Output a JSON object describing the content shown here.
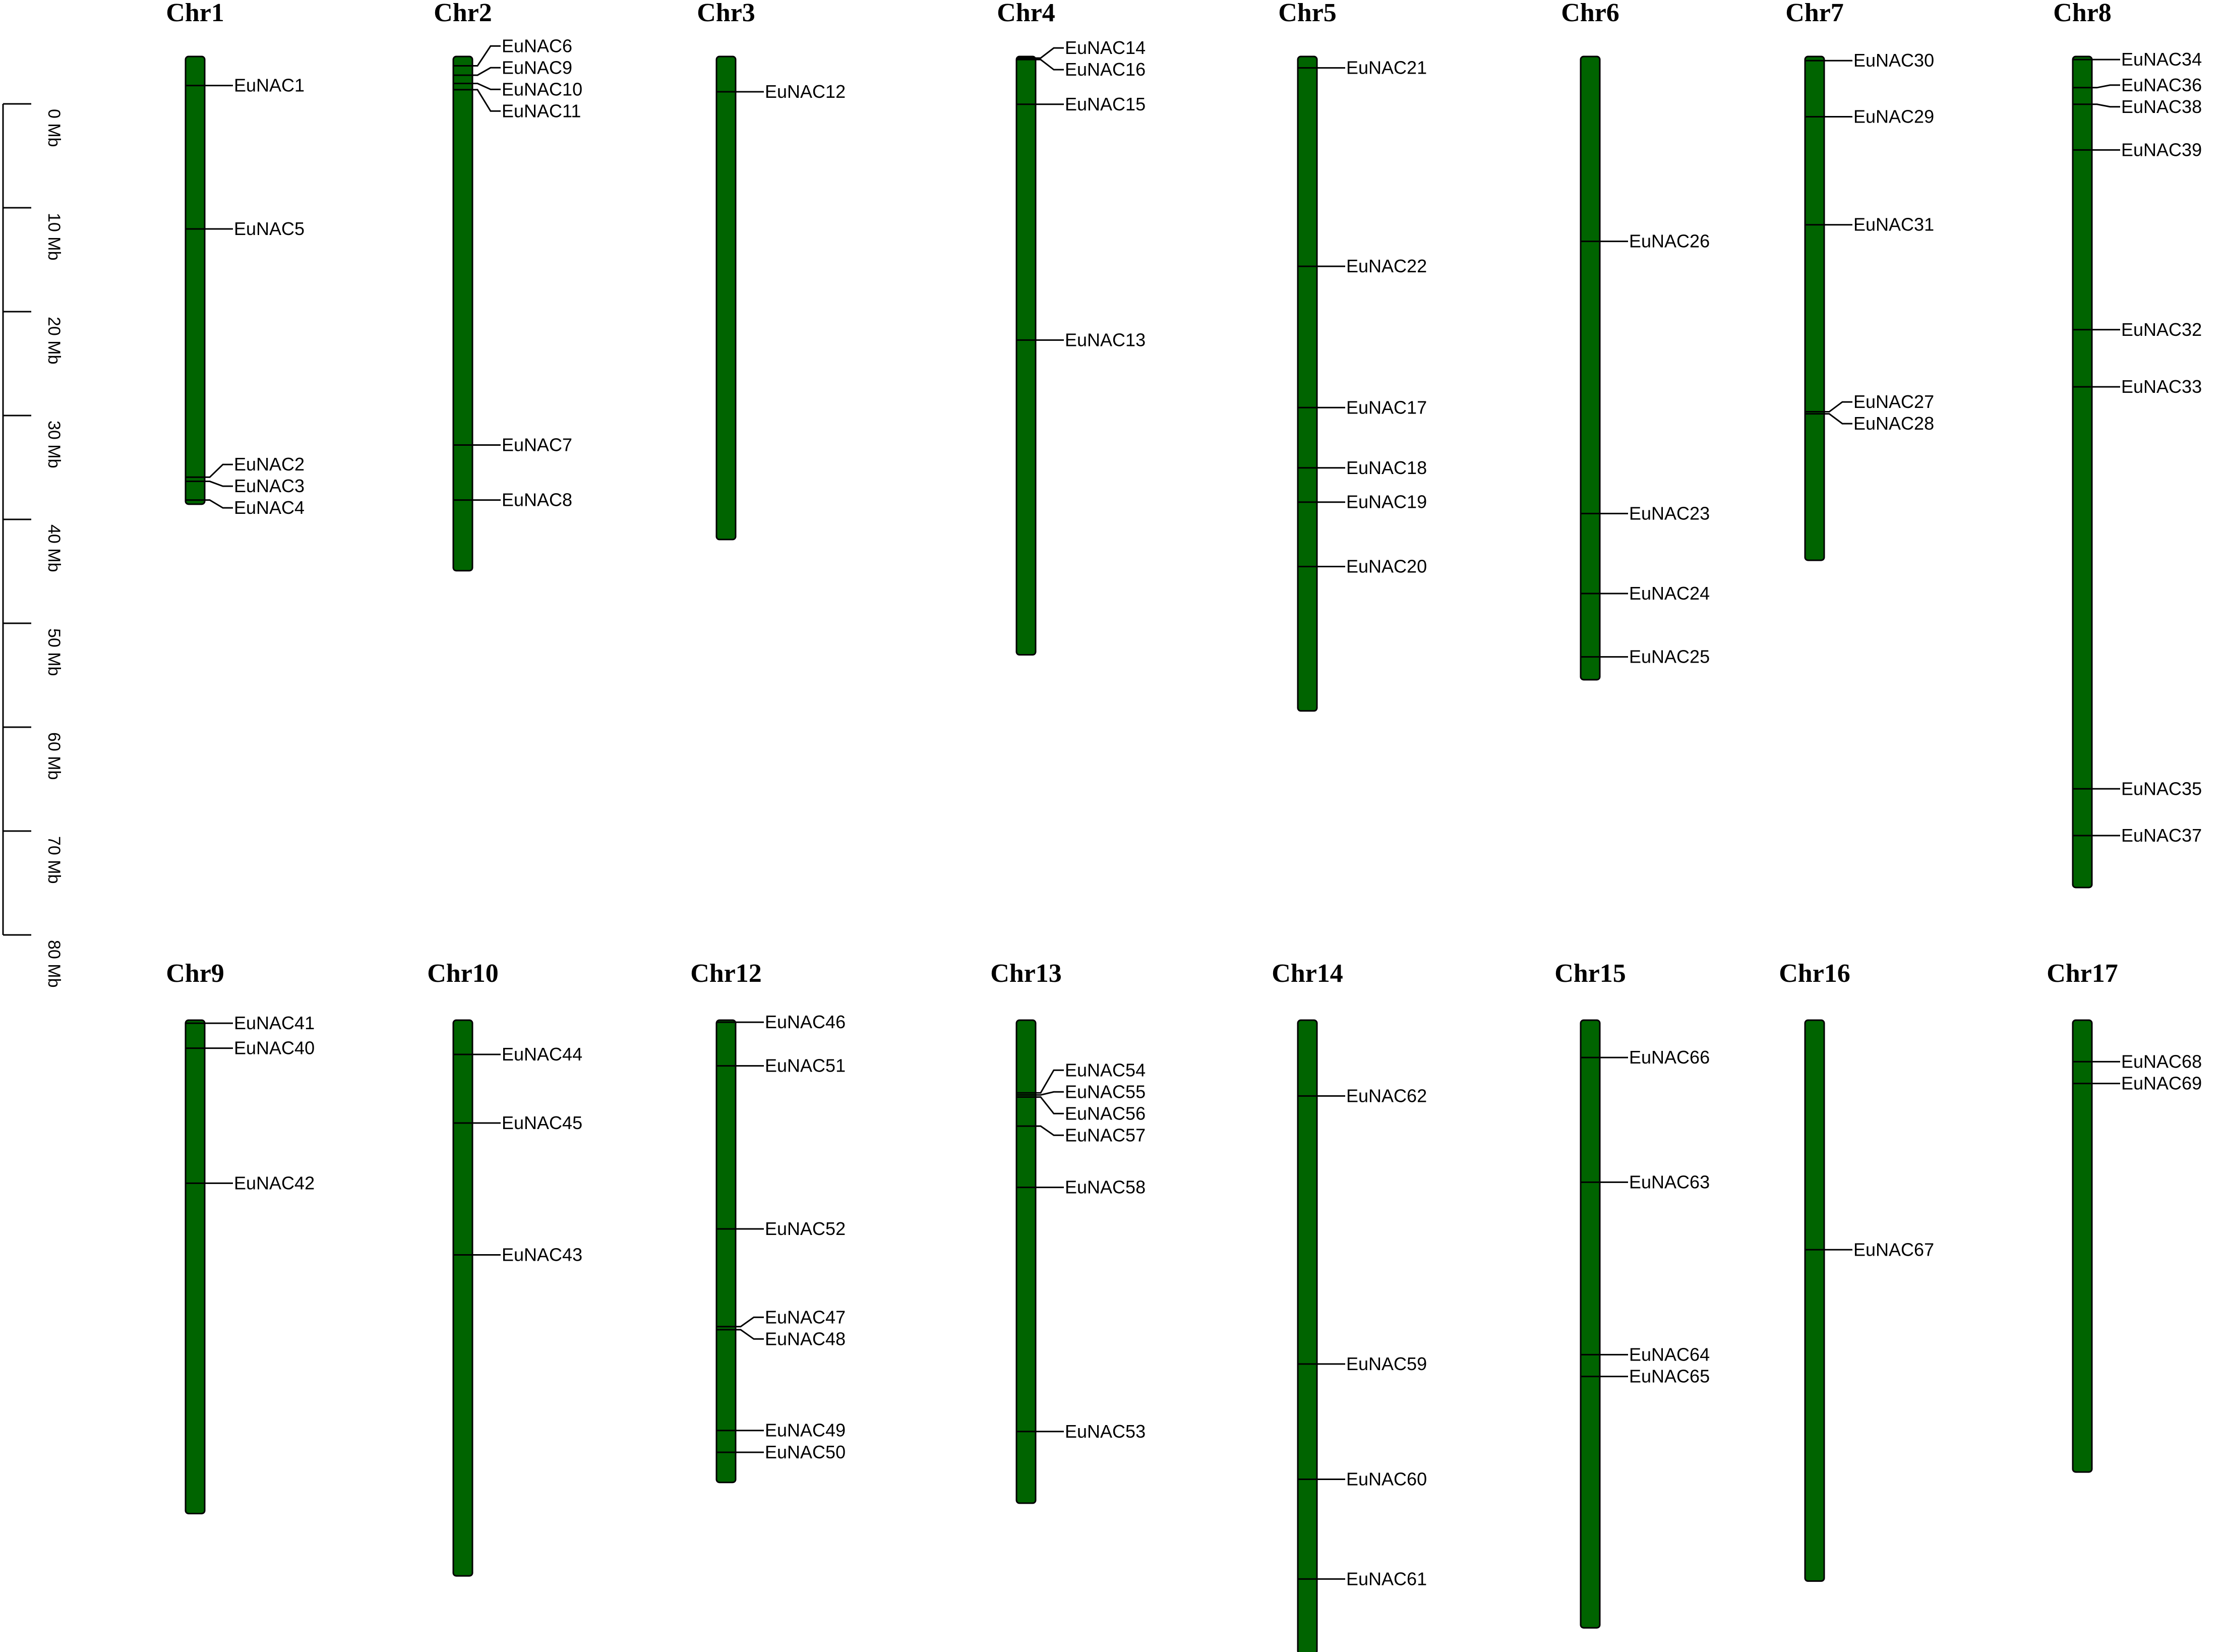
{
  "colors": {
    "chromosome_fill": "#006400",
    "chromosome_stroke": "#000000",
    "line": "#000000"
  },
  "scale": {
    "unit": "Mb",
    "ticks": [
      {
        "value": 0,
        "label": "0 Mb"
      },
      {
        "value": 10,
        "label": "10 Mb"
      },
      {
        "value": 20,
        "label": "20 Mb"
      },
      {
        "value": 30,
        "label": "30 Mb"
      },
      {
        "value": 40,
        "label": "40 Mb"
      },
      {
        "value": 50,
        "label": "50 Mb"
      },
      {
        "value": 60,
        "label": "60 Mb"
      },
      {
        "value": 70,
        "label": "70 Mb"
      },
      {
        "value": 80,
        "label": "80 Mb"
      }
    ]
  },
  "chromosomes": [
    {
      "name": "Chr1",
      "length": 43.1,
      "genes": [
        {
          "name": "EuNAC1",
          "pos": 2.8
        },
        {
          "name": "EuNAC5",
          "pos": 16.6
        },
        {
          "name": "EuNAC2",
          "pos": 40.5
        },
        {
          "name": "EuNAC3",
          "pos": 40.9
        },
        {
          "name": "EuNAC4",
          "pos": 42.7
        }
      ]
    },
    {
      "name": "Chr2",
      "length": 49.5,
      "genes": [
        {
          "name": "EuNAC6",
          "pos": 0.9
        },
        {
          "name": "EuNAC9",
          "pos": 1.8
        },
        {
          "name": "EuNAC10",
          "pos": 2.6
        },
        {
          "name": "EuNAC11",
          "pos": 3.2
        },
        {
          "name": "EuNAC7",
          "pos": 37.4
        },
        {
          "name": "EuNAC8",
          "pos": 42.7
        }
      ]
    },
    {
      "name": "Chr3",
      "length": 46.5,
      "genes": [
        {
          "name": "EuNAC12",
          "pos": 3.4
        }
      ]
    },
    {
      "name": "Chr4",
      "length": 57.6,
      "genes": [
        {
          "name": "EuNAC14",
          "pos": 0.15
        },
        {
          "name": "EuNAC16",
          "pos": 0.3
        },
        {
          "name": "EuNAC15",
          "pos": 4.6
        },
        {
          "name": "EuNAC13",
          "pos": 27.3
        }
      ]
    },
    {
      "name": "Chr5",
      "length": 63.0,
      "genes": [
        {
          "name": "EuNAC21",
          "pos": 1.1
        },
        {
          "name": "EuNAC22",
          "pos": 20.2
        },
        {
          "name": "EuNAC17",
          "pos": 33.8
        },
        {
          "name": "EuNAC18",
          "pos": 39.6
        },
        {
          "name": "EuNAC19",
          "pos": 42.9
        },
        {
          "name": "EuNAC20",
          "pos": 49.1
        }
      ]
    },
    {
      "name": "Chr6",
      "length": 60.0,
      "genes": [
        {
          "name": "EuNAC26",
          "pos": 17.8
        },
        {
          "name": "EuNAC23",
          "pos": 44.0
        },
        {
          "name": "EuNAC24",
          "pos": 51.7
        },
        {
          "name": "EuNAC25",
          "pos": 57.8
        }
      ]
    },
    {
      "name": "Chr7",
      "length": 48.5,
      "genes": [
        {
          "name": "EuNAC30",
          "pos": 0.4
        },
        {
          "name": "EuNAC29",
          "pos": 5.8
        },
        {
          "name": "EuNAC31",
          "pos": 16.2
        },
        {
          "name": "EuNAC27",
          "pos": 34.2
        },
        {
          "name": "EuNAC28",
          "pos": 34.4
        }
      ]
    },
    {
      "name": "Chr8",
      "length": 80.0,
      "genes": [
        {
          "name": "EuNAC34",
          "pos": 0.3
        },
        {
          "name": "EuNAC36",
          "pos": 3.0
        },
        {
          "name": "EuNAC38",
          "pos": 4.6
        },
        {
          "name": "EuNAC39",
          "pos": 9.0
        },
        {
          "name": "EuNAC32",
          "pos": 26.3
        },
        {
          "name": "EuNAC33",
          "pos": 31.8
        },
        {
          "name": "EuNAC35",
          "pos": 70.5
        },
        {
          "name": "EuNAC37",
          "pos": 75.0
        }
      ]
    },
    {
      "name": "Chr9",
      "length": 47.5,
      "genes": [
        {
          "name": "EuNAC41",
          "pos": 0.3
        },
        {
          "name": "EuNAC40",
          "pos": 2.7
        },
        {
          "name": "EuNAC42",
          "pos": 15.7
        }
      ]
    },
    {
      "name": "Chr10",
      "length": 53.5,
      "genes": [
        {
          "name": "EuNAC44",
          "pos": 3.3
        },
        {
          "name": "EuNAC45",
          "pos": 9.9
        },
        {
          "name": "EuNAC43",
          "pos": 22.6
        }
      ]
    },
    {
      "name": "Chr12",
      "length": 44.5,
      "genes": [
        {
          "name": "EuNAC46",
          "pos": 0.2
        },
        {
          "name": "EuNAC51",
          "pos": 4.4
        },
        {
          "name": "EuNAC52",
          "pos": 20.1
        },
        {
          "name": "EuNAC47",
          "pos": 29.5
        },
        {
          "name": "EuNAC48",
          "pos": 29.8
        },
        {
          "name": "EuNAC49",
          "pos": 39.5
        },
        {
          "name": "EuNAC50",
          "pos": 41.6
        }
      ]
    },
    {
      "name": "Chr13",
      "length": 46.5,
      "genes": [
        {
          "name": "EuNAC54",
          "pos": 7.0
        },
        {
          "name": "EuNAC55",
          "pos": 7.2
        },
        {
          "name": "EuNAC56",
          "pos": 7.4
        },
        {
          "name": "EuNAC57",
          "pos": 10.2
        },
        {
          "name": "EuNAC58",
          "pos": 16.1
        },
        {
          "name": "EuNAC53",
          "pos": 39.6
        }
      ]
    },
    {
      "name": "Chr14",
      "length": 61.0,
      "genes": [
        {
          "name": "EuNAC62",
          "pos": 7.3
        },
        {
          "name": "EuNAC59",
          "pos": 33.1
        },
        {
          "name": "EuNAC60",
          "pos": 44.2
        },
        {
          "name": "EuNAC61",
          "pos": 53.8
        }
      ]
    },
    {
      "name": "Chr15",
      "length": 58.5,
      "genes": [
        {
          "name": "EuNAC66",
          "pos": 3.6
        },
        {
          "name": "EuNAC63",
          "pos": 15.6
        },
        {
          "name": "EuNAC64",
          "pos": 32.2
        },
        {
          "name": "EuNAC65",
          "pos": 34.3
        }
      ]
    },
    {
      "name": "Chr16",
      "length": 54.0,
      "genes": [
        {
          "name": "EuNAC67",
          "pos": 22.1
        }
      ]
    },
    {
      "name": "Chr17",
      "length": 43.5,
      "genes": [
        {
          "name": "EuNAC68",
          "pos": 4.0
        },
        {
          "name": "EuNAC69",
          "pos": 6.1
        }
      ]
    }
  ]
}
